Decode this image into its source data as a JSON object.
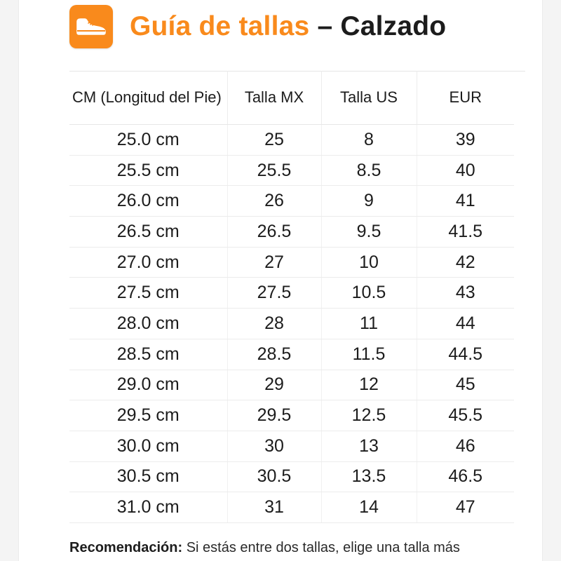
{
  "header": {
    "title_accent": "Guía de tallas",
    "title_rest": "– Calzado",
    "logo_icon": "shoe-icon",
    "accent_color": "#f98a1c"
  },
  "table": {
    "columns": [
      "CM (Longitud del Pie)",
      "Talla MX",
      "Talla US",
      "EUR"
    ],
    "rows": [
      [
        "25.0 cm",
        "25",
        "8",
        "39"
      ],
      [
        "25.5 cm",
        "25.5",
        "8.5",
        "40"
      ],
      [
        "26.0 cm",
        "26",
        "9",
        "41"
      ],
      [
        "26.5 cm",
        "26.5",
        "9.5",
        "41.5"
      ],
      [
        "27.0 cm",
        "27",
        "10",
        "42"
      ],
      [
        "27.5 cm",
        "27.5",
        "10.5",
        "43"
      ],
      [
        "28.0 cm",
        "28",
        "11",
        "44"
      ],
      [
        "28.5 cm",
        "28.5",
        "11.5",
        "44.5"
      ],
      [
        "29.0 cm",
        "29",
        "12",
        "45"
      ],
      [
        "29.5 cm",
        "29.5",
        "12.5",
        "45.5"
      ],
      [
        "30.0 cm",
        "30",
        "13",
        "46"
      ],
      [
        "30.5 cm",
        "30.5",
        "13.5",
        "46.5"
      ],
      [
        "31.0 cm",
        "31",
        "14",
        "47"
      ]
    ]
  },
  "recommendation": {
    "label": "Recomendación:",
    "text": "Si estás entre dos tallas, elige una talla más"
  }
}
